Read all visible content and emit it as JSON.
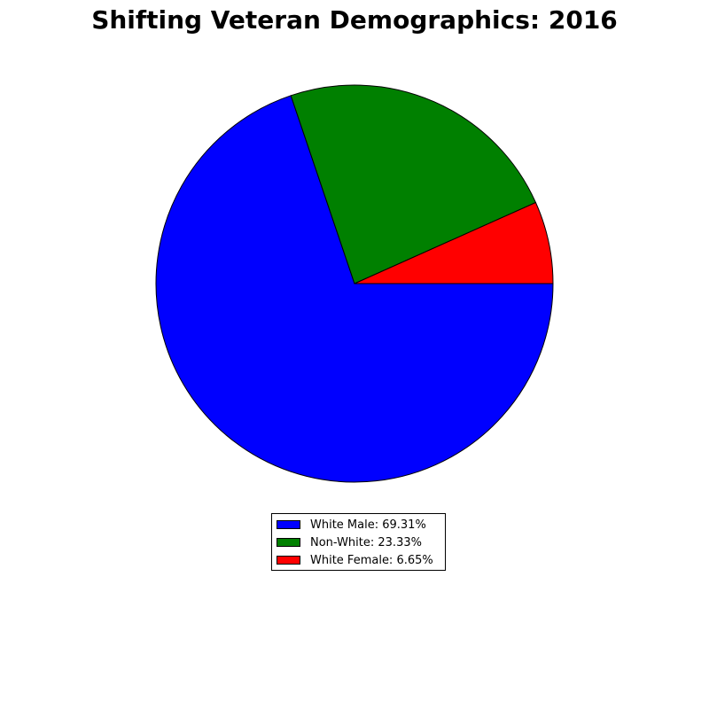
{
  "chart_data": {
    "type": "pie",
    "title": "Shifting Veteran Demographics: 2016",
    "start_angle": "0° (3 o'clock), clockwise",
    "slices": [
      {
        "label": "White Male: 69.31%",
        "value": 69.31,
        "color": "#0000ff"
      },
      {
        "label": "Non-White: 23.33%",
        "value": 23.33,
        "color": "#008000"
      },
      {
        "label": "White Female: 6.65%",
        "value": 6.65,
        "color": "#ff0000"
      }
    ],
    "legend_placement": "bottom-center"
  }
}
